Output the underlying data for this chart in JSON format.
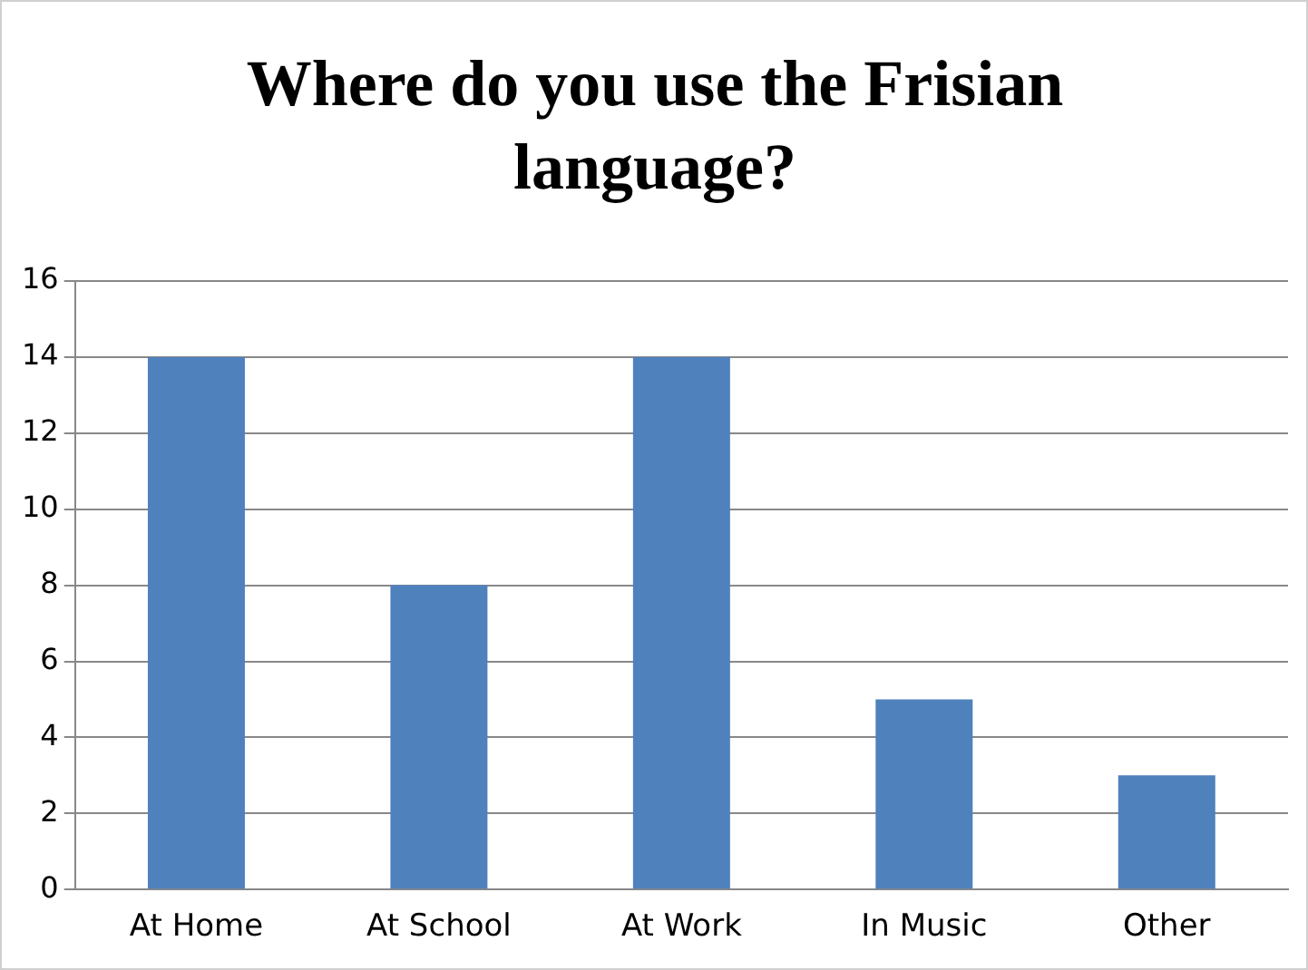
{
  "chart_data": {
    "type": "bar",
    "title": "Where do you use the Frisian language?",
    "categories": [
      "At Home",
      "At School",
      "At Work",
      "In Music",
      "Other"
    ],
    "values": [
      14,
      8,
      14,
      5,
      3
    ],
    "color": "#4f81bd",
    "ylim": [
      0,
      16
    ],
    "yticks": [
      0,
      2,
      4,
      6,
      8,
      10,
      12,
      14,
      16
    ],
    "grid": "y"
  }
}
